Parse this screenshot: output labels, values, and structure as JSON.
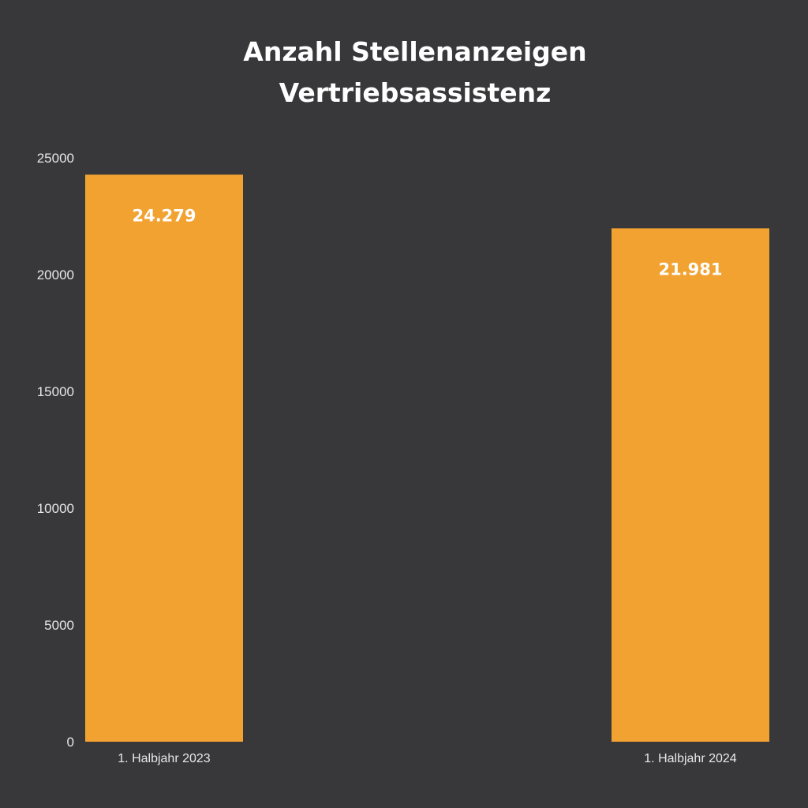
{
  "chart_data": {
    "type": "bar",
    "title": [
      "Anzahl Stellenanzeigen",
      "Vertriebsassistenz"
    ],
    "categories": [
      "1. Halbjahr 2023",
      "1. Halbjahr 2024"
    ],
    "values": [
      24279,
      21981
    ],
    "data_labels": [
      "24.279",
      "21.981"
    ],
    "yticks": [
      0,
      5000,
      10000,
      15000,
      20000,
      25000
    ],
    "ylim": [
      0,
      25000
    ],
    "xlabel": "",
    "ylabel": "",
    "grid": false,
    "colors": {
      "bar": "#f2a231",
      "background": "#38383a",
      "text": "#ffffff"
    }
  }
}
